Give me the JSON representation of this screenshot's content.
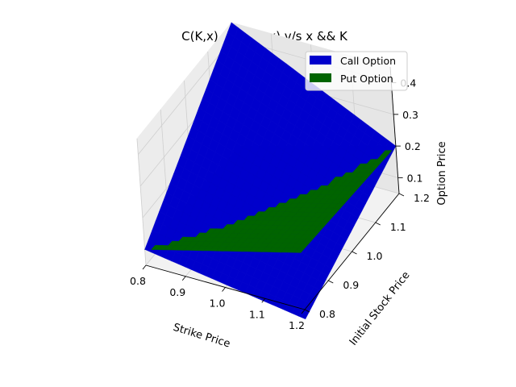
{
  "chart_data": {
    "type": "surface3d",
    "title": "C(K,x) && P(K,x) v/s x && K",
    "xlabel": "Strike Price",
    "ylabel": "Initial Stock Price",
    "zlabel": "Option Price",
    "xlim": [
      0.8,
      1.2
    ],
    "ylim": [
      0.8,
      1.2
    ],
    "zlim": [
      0.05,
      0.45
    ],
    "xticks": [
      "0.8",
      "0.9",
      "1.0",
      "1.1",
      "1.2"
    ],
    "yticks": [
      "0.8",
      "0.9",
      "1.0",
      "1.1",
      "1.2"
    ],
    "zticks": [
      "0.1",
      "0.2",
      "0.3",
      "0.4"
    ],
    "grid": true,
    "legend": "top-right",
    "series": [
      {
        "name": "Call Option",
        "color": "#0000cc",
        "corner_values": {
          "K0.8_x0.8": 0.1,
          "K1.2_x0.8": 0.02,
          "K0.8_x1.2": 0.45,
          "K1.2_x1.2": 0.2
        }
      },
      {
        "name": "Put Option",
        "color": "#006400",
        "corner_values": {
          "K0.8_x0.8": 0.1,
          "K1.2_x0.8": 0.23,
          "K0.8_x1.2": 0.06,
          "K1.2_x1.2": 0.2
        }
      }
    ]
  }
}
